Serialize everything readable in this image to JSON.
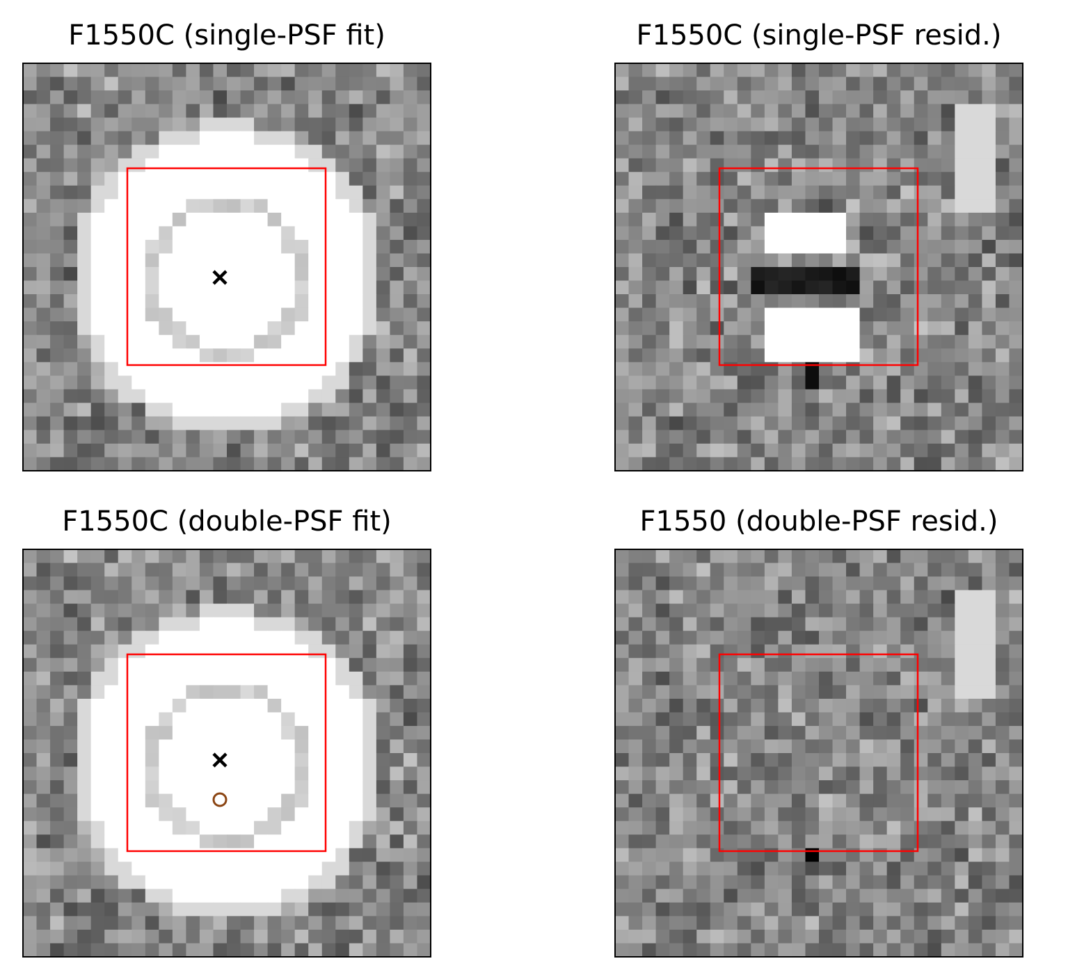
{
  "panels": [
    {
      "title": "F1550C (single-PSF fit)"
    },
    {
      "title": "F1550C (single-PSF resid.)"
    },
    {
      "title": "F1550C (double-PSF fit)"
    },
    {
      "title": "F1550 (double-PSF resid.)"
    }
  ]
}
